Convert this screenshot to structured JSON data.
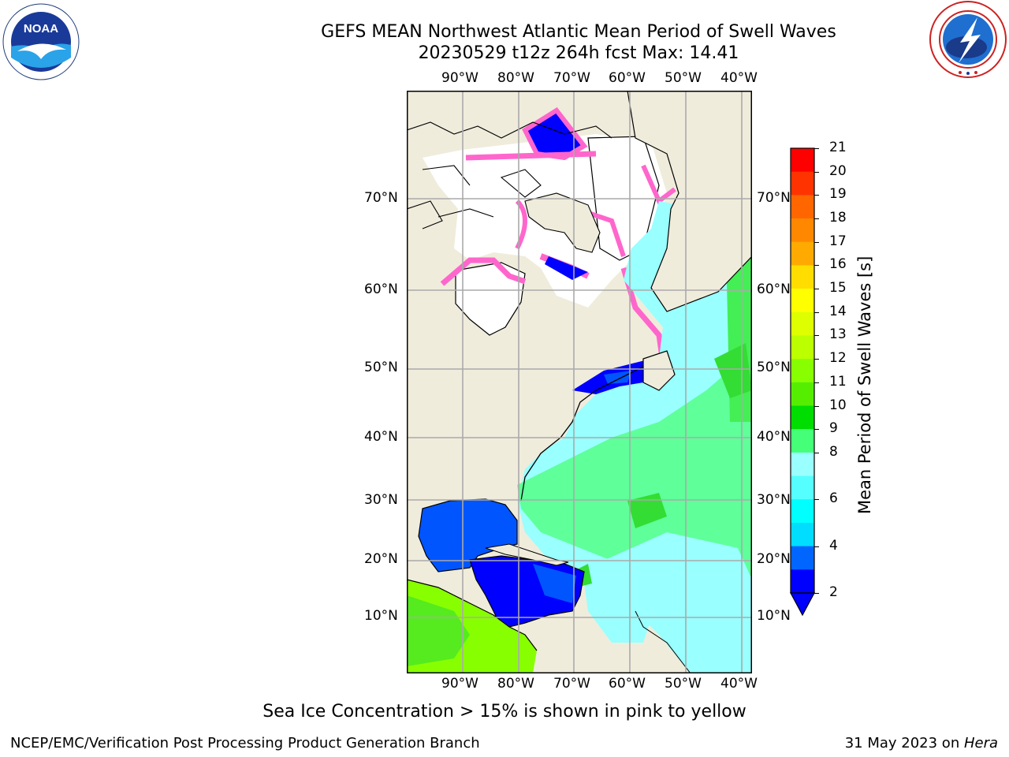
{
  "header": {
    "title_line1": "GEFS MEAN Northwest Atlantic Mean Period of Swell Waves",
    "title_line2": "20230529 t12z 264h fcst   Max: 14.41"
  },
  "logos": {
    "left": {
      "icon": "noaa-logo-icon",
      "text": "NOAA",
      "ring_text": "NATIONAL OCEANIC AND ATMOSPHERIC ADMINISTRATION · U.S. DEPARTMENT OF COMMERCE"
    },
    "right": {
      "icon": "nws-logo-icon",
      "ring_text": "NATIONAL WEATHER SERVICE"
    }
  },
  "map": {
    "lon_labels": [
      "90°W",
      "80°W",
      "70°W",
      "60°W",
      "50°W",
      "40°W"
    ],
    "lat_labels": [
      "70°N",
      "60°N",
      "50°N",
      "40°N",
      "30°N",
      "20°N",
      "10°N"
    ],
    "colors": {
      "land": "#efecdc",
      "ice_free_white": "#ffffff",
      "gulf_blue": "#0055ff",
      "deep_blue": "#0000ff",
      "cyan_light": "#99ffff",
      "green_light": "#55ff88",
      "green": "#33dd33",
      "yellow_green": "#aaff00",
      "ice_pink": "#ff66cc",
      "ice_yellow": "#ffee00",
      "grid": "#aaaaaa"
    }
  },
  "colorbar": {
    "title": "Mean Period of Swell Waves [s]",
    "tick_labels": [
      "21",
      "20",
      "19",
      "18",
      "17",
      "16",
      "15",
      "14",
      "13",
      "12",
      "11",
      "10",
      "9",
      "8",
      "6",
      "4",
      "2"
    ],
    "colors": [
      "#ff0000",
      "#ff3300",
      "#ff6600",
      "#ff8800",
      "#ffaa00",
      "#ffdd00",
      "#ffff00",
      "#ddff00",
      "#bbff00",
      "#88ff00",
      "#55ee00",
      "#00dd00",
      "#44ff77",
      "#99ffff",
      "#55ffff",
      "#00ffff",
      "#00ddff",
      "#0066ff",
      "#0000ff"
    ]
  },
  "caption": "Sea Ice Concentration > 15% is shown in pink to yellow",
  "footer": {
    "left": "NCEP/EMC/Verification Post Processing Product Generation Branch",
    "right_prefix": "31 May 2023 on ",
    "right_host": "Hera"
  }
}
